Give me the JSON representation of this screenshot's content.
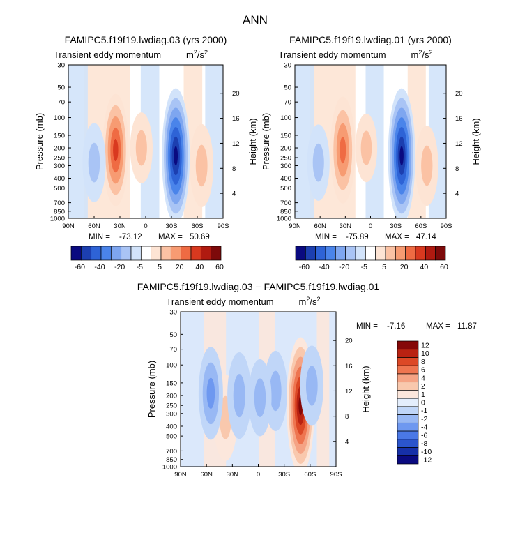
{
  "page_title": "ANN",
  "colors": {
    "levels_main": [
      "#0a0a80",
      "#1c3fb0",
      "#2e63d6",
      "#4a84ea",
      "#7ea6f0",
      "#a9c4f5",
      "#d2e3fa",
      "#ffffff",
      "#fde4d4",
      "#fbc2a4",
      "#f79b72",
      "#ef6b43",
      "#d9391f",
      "#b01a10",
      "#7d0a0a"
    ],
    "levels_diff": [
      "#0a0a80",
      "#1630a8",
      "#2b55cc",
      "#4a78e6",
      "#6e98f0",
      "#98b8f4",
      "#c0d6f8",
      "#e4eefc",
      "#fce7dc",
      "#f9c8ad",
      "#f5a384",
      "#ee7550",
      "#dc4826",
      "#b92212",
      "#850808"
    ]
  },
  "chart_data": [
    {
      "type": "contour",
      "case": "FAMIPC5.f19f19.lwdiag.03 (yrs 2000)",
      "subtitle": "Transient eddy momentum",
      "units": "m²/s²",
      "units_base": "m",
      "units_exp": "2",
      "units_den": "/s",
      "ylabel": "Pressure (mb)",
      "y2label": "Height (km)",
      "x_ticks": [
        "90N",
        "60N",
        "30N",
        "0",
        "30S",
        "60S",
        "90S"
      ],
      "y_ticks": [
        "30",
        "50",
        "70",
        "100",
        "150",
        "200",
        "250",
        "300",
        "400",
        "500",
        "700",
        "850",
        "1000"
      ],
      "y2_ticks": [
        "20",
        "16",
        "12",
        "8",
        "4"
      ],
      "min_label": "MIN =",
      "min_value": "-73.12",
      "max_label": "MAX =",
      "max_value": "50.69",
      "colorbar_labels": [
        "-60",
        "-40",
        "-20",
        "-5",
        "5",
        "20",
        "40",
        "60"
      ],
      "features": [
        {
          "lat": 35,
          "p": 210,
          "value": 50.69
        },
        {
          "lat": -35,
          "p": 240,
          "value": -73.12
        },
        {
          "lat": -65,
          "p": 300,
          "value": 22
        },
        {
          "lat": 60,
          "p": 280,
          "value": -18
        },
        {
          "lat": 5,
          "p": 200,
          "value": 10
        }
      ]
    },
    {
      "type": "contour",
      "case": "FAMIPC5.f19f19.lwdiag.01 (yrs 2000)",
      "subtitle": "Transient eddy momentum",
      "units": "m²/s²",
      "units_base": "m",
      "units_exp": "2",
      "units_den": "/s",
      "ylabel": "Pressure (mb)",
      "y2label": "Height (km)",
      "x_ticks": [
        "90N",
        "60N",
        "30N",
        "0",
        "30S",
        "60S",
        "90S"
      ],
      "y_ticks": [
        "30",
        "50",
        "70",
        "100",
        "150",
        "200",
        "250",
        "300",
        "400",
        "500",
        "700",
        "850",
        "1000"
      ],
      "y2_ticks": [
        "20",
        "16",
        "12",
        "8",
        "4"
      ],
      "min_label": "MIN =",
      "min_value": "-75.89",
      "max_label": "MAX =",
      "max_value": "47.14",
      "colorbar_labels": [
        "-60",
        "-40",
        "-20",
        "-5",
        "5",
        "20",
        "40",
        "60"
      ],
      "features": [
        {
          "lat": 33,
          "p": 210,
          "value": 47.14
        },
        {
          "lat": -37,
          "p": 240,
          "value": -75.89
        },
        {
          "lat": -67,
          "p": 300,
          "value": 20
        },
        {
          "lat": 62,
          "p": 280,
          "value": -16
        },
        {
          "lat": 5,
          "p": 200,
          "value": 8
        }
      ]
    },
    {
      "type": "contour",
      "case": "FAMIPC5.f19f19.lwdiag.03 − FAMIPC5.f19f19.lwdiag.01",
      "subtitle": "Transient eddy momentum",
      "units": "m²/s²",
      "units_base": "m",
      "units_exp": "2",
      "units_den": "/s",
      "ylabel": "Pressure (mb)",
      "y2label": "Height (km)",
      "x_ticks": [
        "90N",
        "60N",
        "30N",
        "0",
        "30S",
        "60S",
        "90S"
      ],
      "y_ticks": [
        "30",
        "50",
        "70",
        "100",
        "150",
        "200",
        "250",
        "300",
        "400",
        "500",
        "700",
        "850",
        "1000"
      ],
      "y2_ticks": [
        "20",
        "16",
        "12",
        "8",
        "4"
      ],
      "min_label": "MIN =",
      "min_value": "-7.16",
      "max_label": "MAX =",
      "max_value": "11.87",
      "colorbar_labels": [
        "12",
        "10",
        "8",
        "6",
        "4",
        "2",
        "1",
        "0",
        "-1",
        "-2",
        "-4",
        "-6",
        "-8",
        "-10",
        "-12"
      ],
      "features": [
        {
          "lat": -49,
          "p": 250,
          "value": 11.87
        },
        {
          "lat": 38,
          "p": 330,
          "value": 4
        },
        {
          "lat": 55,
          "p": 190,
          "value": -5
        },
        {
          "lat": 22,
          "p": 200,
          "value": -4
        },
        {
          "lat": -20,
          "p": 180,
          "value": -3
        },
        {
          "lat": -2,
          "p": 210,
          "value": -2.5
        },
        {
          "lat": -62,
          "p": 160,
          "value": -3
        }
      ]
    }
  ]
}
